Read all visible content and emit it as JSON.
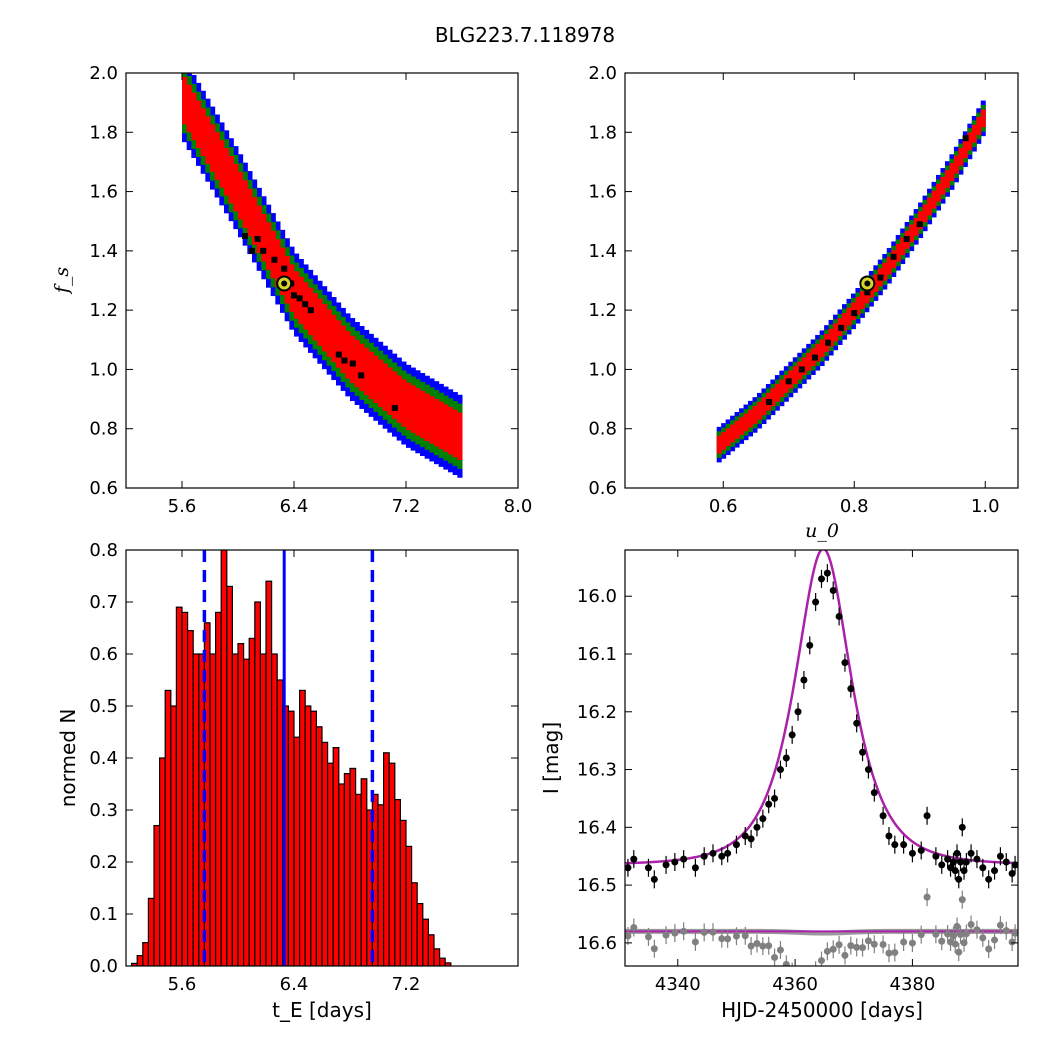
{
  "figure": {
    "title": "BLG223.7.118978"
  },
  "colors": {
    "sigma1": "#ff0000",
    "sigma2": "#008000",
    "sigma3": "#0000ff",
    "samples": "#000000",
    "best": "#d4d42a",
    "model": "#aa22aa",
    "residual": "#808080",
    "median": "#0000ff"
  },
  "chart_data": [
    {
      "panel": "top-left",
      "type": "heatmap",
      "title": "",
      "xlabel": "",
      "ylabel": "f_s",
      "xlim": [
        5.2,
        8.0
      ],
      "ylim": [
        0.6,
        2.0
      ],
      "xticks": [
        "5.6",
        "6.4",
        "7.2",
        "8.0"
      ],
      "yticks": [
        "0.6",
        "0.8",
        "1.0",
        "1.2",
        "1.4",
        "1.6",
        "1.8",
        "2.0"
      ],
      "ridge": [
        [
          5.6,
          1.92
        ],
        [
          6.0,
          1.6
        ],
        [
          6.4,
          1.26
        ],
        [
          6.8,
          1.04
        ],
        [
          7.2,
          0.88
        ],
        [
          7.6,
          0.77
        ]
      ],
      "ridge_widths": {
        "sigma1": 0.08,
        "sigma2": 0.11,
        "sigma3": 0.14
      },
      "black_samples": [
        [
          6.05,
          1.45
        ],
        [
          6.1,
          1.4
        ],
        [
          6.14,
          1.44
        ],
        [
          6.18,
          1.4
        ],
        [
          6.26,
          1.37
        ],
        [
          6.33,
          1.34
        ],
        [
          6.38,
          1.29
        ],
        [
          6.4,
          1.25
        ],
        [
          6.44,
          1.24
        ],
        [
          6.48,
          1.22
        ],
        [
          6.52,
          1.2
        ],
        [
          6.72,
          1.05
        ],
        [
          6.76,
          1.03
        ],
        [
          6.82,
          1.02
        ],
        [
          6.88,
          0.98
        ],
        [
          7.12,
          0.87
        ]
      ],
      "best_fit": {
        "x": 6.33,
        "y": 1.29
      }
    },
    {
      "panel": "top-right",
      "type": "heatmap",
      "title": "",
      "xlabel": "u_0",
      "ylabel": "",
      "xlim": [
        0.45,
        1.05
      ],
      "ylim": [
        0.6,
        2.0
      ],
      "xticks": [
        "0.6",
        "0.8",
        "1.0"
      ],
      "yticks": [
        "0.6",
        "0.8",
        "1.0",
        "1.2",
        "1.4",
        "1.6",
        "1.8",
        "2.0"
      ],
      "ridge": [
        [
          0.59,
          0.74
        ],
        [
          0.65,
          0.85
        ],
        [
          0.7,
          0.96
        ],
        [
          0.75,
          1.07
        ],
        [
          0.8,
          1.2
        ],
        [
          0.85,
          1.34
        ],
        [
          0.9,
          1.5
        ],
        [
          0.95,
          1.67
        ],
        [
          1.0,
          1.86
        ]
      ],
      "ridge_widths": {
        "sigma1": 0.03,
        "sigma2": 0.045,
        "sigma3": 0.06
      },
      "black_samples": [
        [
          0.67,
          0.89
        ],
        [
          0.7,
          0.96
        ],
        [
          0.72,
          1.0
        ],
        [
          0.74,
          1.04
        ],
        [
          0.76,
          1.09
        ],
        [
          0.78,
          1.14
        ],
        [
          0.8,
          1.19
        ],
        [
          0.82,
          1.26
        ],
        [
          0.84,
          1.31
        ],
        [
          0.86,
          1.38
        ],
        [
          0.88,
          1.44
        ],
        [
          0.9,
          1.49
        ],
        [
          0.97,
          1.78
        ]
      ],
      "best_fit": {
        "x": 0.82,
        "y": 1.29
      }
    },
    {
      "panel": "bottom-left",
      "type": "bar",
      "title": "",
      "xlabel": "t_E [days]",
      "ylabel": "normed N",
      "xlim": [
        5.2,
        8.0
      ],
      "ylim": [
        0.0,
        0.8
      ],
      "xticks": [
        "5.6",
        "6.4",
        "7.2"
      ],
      "yticks": [
        "0.0",
        "0.1",
        "0.2",
        "0.3",
        "0.4",
        "0.5",
        "0.6",
        "0.7",
        "0.8"
      ],
      "bin_start": 5.2,
      "bin_width": 0.04,
      "values": [
        0.0,
        0.005,
        0.02,
        0.045,
        0.13,
        0.27,
        0.4,
        0.53,
        0.5,
        0.69,
        0.68,
        0.645,
        0.6,
        0.6,
        0.66,
        0.6,
        0.68,
        0.8,
        0.73,
        0.6,
        0.62,
        0.59,
        0.63,
        0.7,
        0.6,
        0.74,
        0.6,
        0.55,
        0.5,
        0.49,
        0.44,
        0.53,
        0.5,
        0.49,
        0.46,
        0.43,
        0.39,
        0.42,
        0.35,
        0.37,
        0.38,
        0.33,
        0.36,
        0.3,
        0.33,
        0.31,
        0.41,
        0.39,
        0.32,
        0.28,
        0.23,
        0.16,
        0.12,
        0.09,
        0.06,
        0.033,
        0.015,
        0.006,
        0.0
      ],
      "median": 6.33,
      "interval": [
        5.76,
        6.96
      ]
    },
    {
      "panel": "bottom-right",
      "type": "line",
      "title": "",
      "xlabel": "HJD-2450000 [days]",
      "ylabel": "I [mag]",
      "xlim": [
        4331,
        4398
      ],
      "ylim": [
        16.64,
        15.92
      ],
      "xticks": [
        "4340",
        "4360",
        "4380"
      ],
      "yticks": [
        "16.0",
        "16.1",
        "16.2",
        "16.3",
        "16.4",
        "16.5",
        "16.6"
      ],
      "model": {
        "t0": 4364.8,
        "tE": 6.33,
        "u0": 0.82,
        "fs": 1.29,
        "baseline": 16.465
      },
      "residual_baseline": 16.58,
      "series": [
        {
          "name": "",
          "x": [
            4331.5,
            4332.5,
            4335,
            4336,
            4338,
            4339.5,
            4341,
            4343,
            4344.5,
            4346,
            4347.5,
            4348.5,
            4350,
            4351.5,
            4352.5,
            4353.5,
            4354.5,
            4355.5,
            4356.5,
            4357.5,
            4358.5,
            4359.5,
            4360.5,
            4361.5,
            4362.5,
            4363.5,
            4364.5,
            4365.5,
            4366.5,
            4367.5,
            4368.5,
            4369.5,
            4370.5,
            4371.5,
            4372.5,
            4373.5,
            4375,
            4376,
            4377,
            4378.5,
            4380,
            4381.5,
            4382.5,
            4384,
            4385,
            4386,
            4386.5,
            4387,
            4387.3,
            4387.6,
            4387.9,
            4388.2,
            4388.5,
            4388.8,
            4389.2,
            4390,
            4391,
            4392,
            4393,
            4394,
            4395,
            4396,
            4397,
            4397.5
          ],
          "y": [
            16.47,
            16.455,
            16.47,
            16.49,
            16.465,
            16.46,
            16.455,
            16.47,
            16.45,
            16.445,
            16.45,
            16.445,
            16.43,
            16.415,
            16.42,
            16.4,
            16.385,
            16.36,
            16.35,
            16.3,
            16.28,
            16.24,
            16.2,
            16.145,
            16.085,
            16.01,
            15.97,
            15.96,
            15.99,
            16.035,
            16.115,
            16.16,
            16.22,
            16.27,
            16.3,
            16.34,
            16.38,
            16.415,
            16.43,
            16.43,
            16.445,
            16.44,
            16.38,
            16.45,
            16.465,
            16.455,
            16.47,
            16.46,
            16.475,
            16.445,
            16.49,
            16.46,
            16.4,
            16.475,
            16.46,
            16.445,
            16.455,
            16.47,
            16.49,
            16.475,
            16.45,
            16.46,
            16.48,
            16.465
          ]
        }
      ]
    }
  ]
}
